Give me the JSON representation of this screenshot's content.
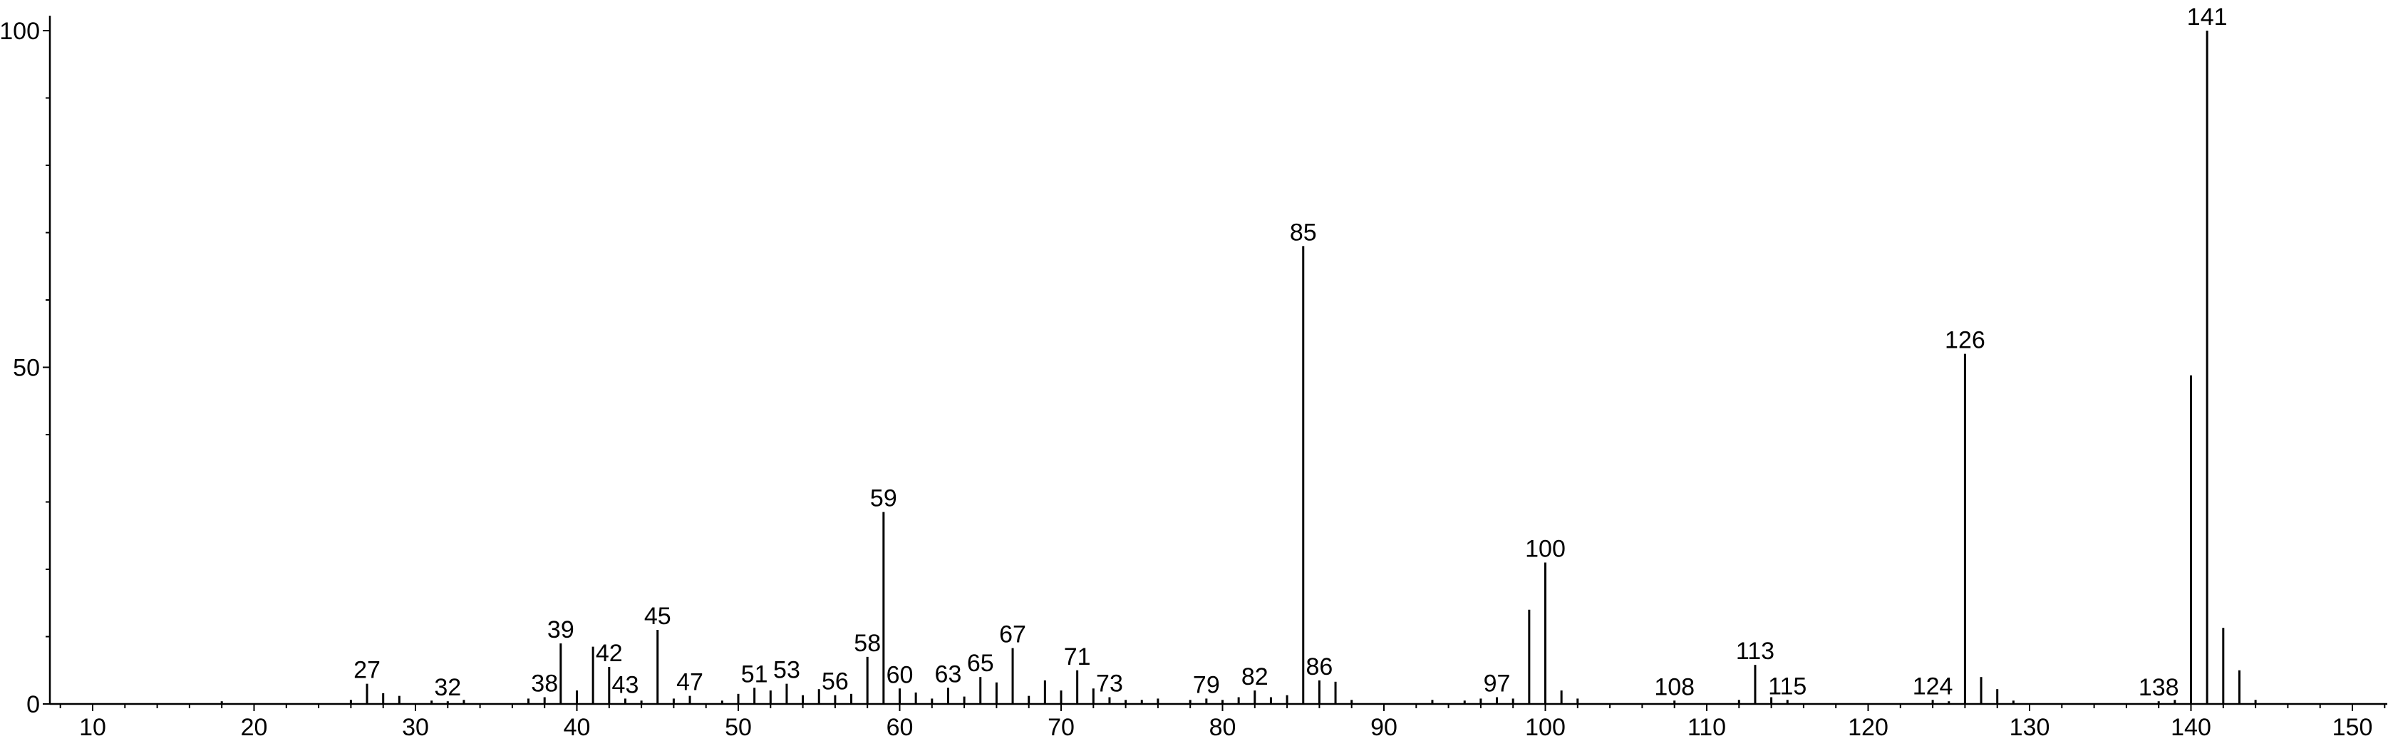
{
  "chart_data": {
    "type": "bar",
    "title": "",
    "xlabel": "",
    "ylabel": "",
    "xlim": [
      8,
      152
    ],
    "ylim": [
      0,
      101
    ],
    "x_ticks": [
      10,
      20,
      30,
      40,
      50,
      60,
      70,
      80,
      90,
      100,
      110,
      120,
      130,
      140,
      150
    ],
    "y_ticks": [
      0,
      50,
      100
    ],
    "grid": false,
    "legend": "none",
    "colors": {
      "line": "#000000",
      "background": "#ffffff"
    },
    "peaks": [
      {
        "x": 18,
        "y": 0.4
      },
      {
        "x": 26,
        "y": 0.6
      },
      {
        "x": 27,
        "y": 3.0,
        "label": "27"
      },
      {
        "x": 28,
        "y": 1.6
      },
      {
        "x": 29,
        "y": 1.2
      },
      {
        "x": 31,
        "y": 0.5
      },
      {
        "x": 32,
        "y": 0.4,
        "label": "32"
      },
      {
        "x": 33,
        "y": 0.6
      },
      {
        "x": 37,
        "y": 0.8
      },
      {
        "x": 38,
        "y": 1.0,
        "label": "38"
      },
      {
        "x": 39,
        "y": 9.0,
        "label": "39"
      },
      {
        "x": 40,
        "y": 2.0
      },
      {
        "x": 41,
        "y": 8.5
      },
      {
        "x": 42,
        "y": 5.5,
        "label": "42"
      },
      {
        "x": 43,
        "y": 0.8,
        "label": "43"
      },
      {
        "x": 44,
        "y": 0.5
      },
      {
        "x": 45,
        "y": 11.0,
        "label": "45"
      },
      {
        "x": 46,
        "y": 0.8
      },
      {
        "x": 47,
        "y": 1.2,
        "label": "47"
      },
      {
        "x": 49,
        "y": 0.5
      },
      {
        "x": 50,
        "y": 1.5
      },
      {
        "x": 51,
        "y": 2.4,
        "label": "51"
      },
      {
        "x": 52,
        "y": 2.0
      },
      {
        "x": 53,
        "y": 3.0,
        "label": "53"
      },
      {
        "x": 54,
        "y": 1.3
      },
      {
        "x": 55,
        "y": 2.2
      },
      {
        "x": 56,
        "y": 1.3,
        "label": "56"
      },
      {
        "x": 57,
        "y": 1.5
      },
      {
        "x": 58,
        "y": 7.0,
        "label": "58"
      },
      {
        "x": 59,
        "y": 28.5,
        "label": "59"
      },
      {
        "x": 60,
        "y": 2.3,
        "label": "60"
      },
      {
        "x": 61,
        "y": 1.7
      },
      {
        "x": 62,
        "y": 0.8
      },
      {
        "x": 63,
        "y": 2.4,
        "label": "63"
      },
      {
        "x": 64,
        "y": 1.1
      },
      {
        "x": 65,
        "y": 4.0,
        "label": "65"
      },
      {
        "x": 66,
        "y": 3.2
      },
      {
        "x": 67,
        "y": 8.3,
        "label": "67"
      },
      {
        "x": 68,
        "y": 1.2
      },
      {
        "x": 69,
        "y": 3.5
      },
      {
        "x": 70,
        "y": 2.0
      },
      {
        "x": 71,
        "y": 5.0,
        "label": "71"
      },
      {
        "x": 72,
        "y": 2.3
      },
      {
        "x": 73,
        "y": 1.0,
        "label": "73"
      },
      {
        "x": 74,
        "y": 0.6
      },
      {
        "x": 75,
        "y": 0.6
      },
      {
        "x": 76,
        "y": 0.8
      },
      {
        "x": 78,
        "y": 0.6
      },
      {
        "x": 79,
        "y": 0.8,
        "label": "79"
      },
      {
        "x": 80,
        "y": 0.6
      },
      {
        "x": 81,
        "y": 1.0
      },
      {
        "x": 82,
        "y": 2.0,
        "label": "82"
      },
      {
        "x": 83,
        "y": 1.0
      },
      {
        "x": 84,
        "y": 1.3
      },
      {
        "x": 85,
        "y": 68.0,
        "label": "85"
      },
      {
        "x": 86,
        "y": 3.5,
        "label": "86"
      },
      {
        "x": 87,
        "y": 3.3
      },
      {
        "x": 88,
        "y": 0.6
      },
      {
        "x": 93,
        "y": 0.6
      },
      {
        "x": 95,
        "y": 0.5
      },
      {
        "x": 96,
        "y": 0.8
      },
      {
        "x": 97,
        "y": 1.0,
        "label": "97"
      },
      {
        "x": 98,
        "y": 0.8
      },
      {
        "x": 99,
        "y": 14.0
      },
      {
        "x": 100,
        "y": 21.0,
        "label": "100"
      },
      {
        "x": 101,
        "y": 2.0
      },
      {
        "x": 102,
        "y": 0.8
      },
      {
        "x": 108,
        "y": 0.5,
        "label": "108"
      },
      {
        "x": 112,
        "y": 0.6
      },
      {
        "x": 113,
        "y": 5.8,
        "label": "113"
      },
      {
        "x": 114,
        "y": 1.0
      },
      {
        "x": 115,
        "y": 0.6,
        "label": "115"
      },
      {
        "x": 124,
        "y": 0.6,
        "label": "124"
      },
      {
        "x": 125,
        "y": 0.4
      },
      {
        "x": 126,
        "y": 52.0,
        "label": "126"
      },
      {
        "x": 127,
        "y": 4.0
      },
      {
        "x": 128,
        "y": 2.2
      },
      {
        "x": 129,
        "y": 0.5
      },
      {
        "x": 138,
        "y": 0.4,
        "label": "138"
      },
      {
        "x": 139,
        "y": 0.6
      },
      {
        "x": 140,
        "y": 48.8
      },
      {
        "x": 141,
        "y": 100.0,
        "label": "141"
      },
      {
        "x": 142,
        "y": 11.3
      },
      {
        "x": 143,
        "y": 5.0
      },
      {
        "x": 144,
        "y": 0.6
      }
    ]
  }
}
